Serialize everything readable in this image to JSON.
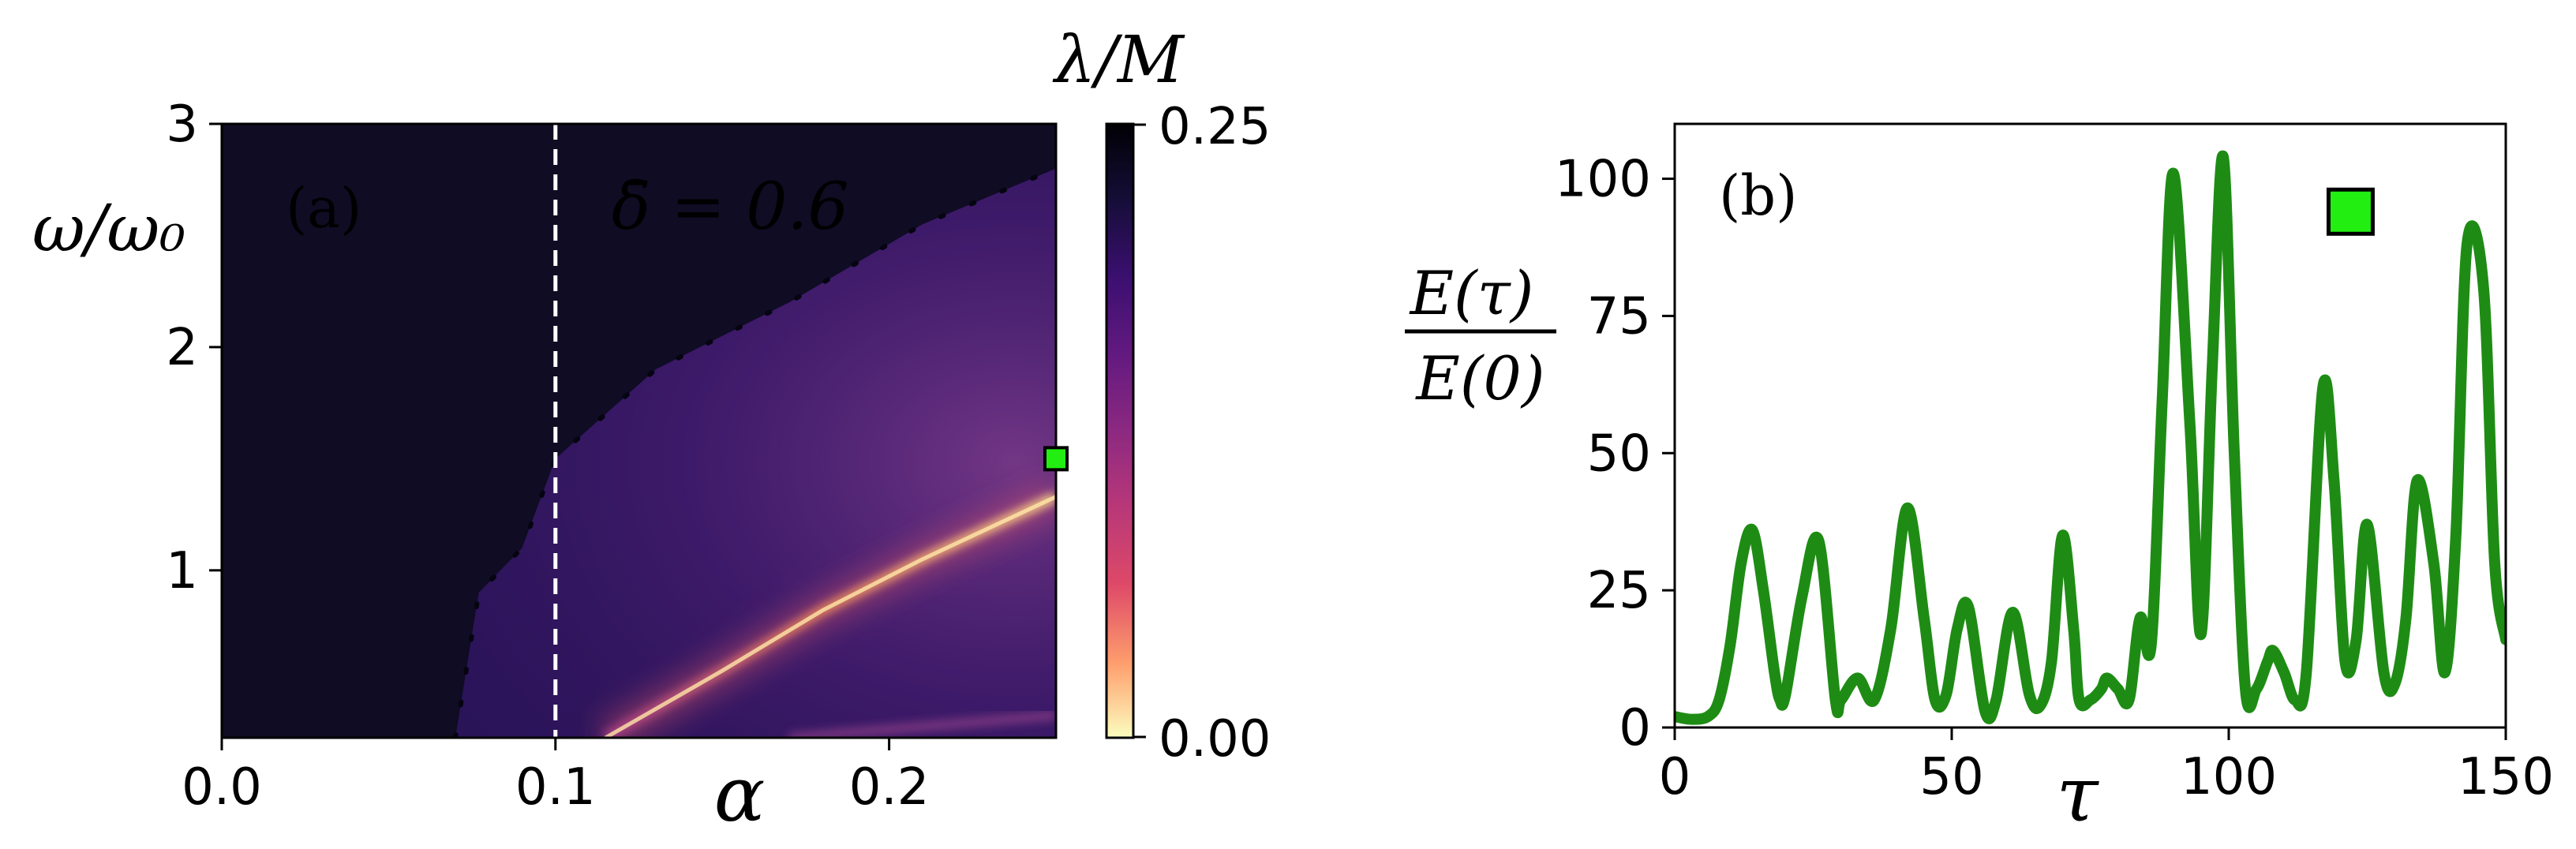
{
  "chart_data": [
    {
      "panel": "a",
      "type": "heatmap",
      "panel_label": "(a)",
      "annotation": "δ̄ = 0.6",
      "xlabel": "α",
      "ylabel": "ω/ω₀",
      "xlim": [
        0.0,
        0.25
      ],
      "ylim": [
        0.25,
        3.0
      ],
      "xticks": [
        0.0,
        0.1,
        0.2
      ],
      "xtick_labels": [
        "0.0",
        "0.1",
        "0.2"
      ],
      "yticks": [
        1,
        2,
        3
      ],
      "ytick_labels": [
        "1",
        "2",
        "3"
      ],
      "vline_x": 0.1,
      "marker": {
        "x": 0.25,
        "y": 1.5,
        "color": "#22ee11"
      },
      "colorbar": {
        "label": "λ/M",
        "min": 0.0,
        "max": 0.25,
        "tick_labels": [
          "0.25",
          "0.00"
        ],
        "colormap": "magma"
      },
      "features": {
        "dark_region_alpha_max": 0.07,
        "instability_boundary": [
          [
            0.07,
            0.25
          ],
          [
            0.077,
            0.9
          ],
          [
            0.09,
            1.1
          ],
          [
            0.1,
            1.5
          ],
          [
            0.13,
            1.9
          ],
          [
            0.17,
            2.2
          ],
          [
            0.21,
            2.55
          ],
          [
            0.25,
            2.8
          ]
        ],
        "bright_resonance": [
          [
            0.115,
            0.25
          ],
          [
            0.15,
            0.55
          ],
          [
            0.18,
            0.82
          ],
          [
            0.21,
            1.05
          ],
          [
            0.25,
            1.33
          ]
        ],
        "faint_resonance": [
          [
            0.17,
            0.25
          ],
          [
            0.25,
            0.35
          ]
        ]
      }
    },
    {
      "panel": "b",
      "type": "line",
      "panel_label": "(b)",
      "xlabel": "τ",
      "ylabel_numerator": "E(τ)",
      "ylabel_denominator": "E(0)",
      "xlim": [
        0,
        150
      ],
      "ylim": [
        0,
        110
      ],
      "xticks": [
        0,
        50,
        100,
        150
      ],
      "xtick_labels": [
        "0",
        "50",
        "100",
        "150"
      ],
      "yticks": [
        0,
        25,
        50,
        75,
        100
      ],
      "ytick_labels": [
        "0",
        "25",
        "50",
        "75",
        "100"
      ],
      "line_color": "#1e8c14",
      "marker": {
        "x": 122,
        "y": 94,
        "color": "#22ee11"
      },
      "series": [
        {
          "name": "E(τ)/E(0)",
          "x": [
            0,
            3,
            6,
            8,
            10,
            12,
            14,
            16,
            18,
            19,
            20,
            23,
            26,
            29,
            30,
            33,
            36,
            39,
            42,
            45,
            47,
            49,
            51,
            53,
            56,
            58,
            61,
            64,
            66,
            68,
            70,
            72,
            73,
            75,
            77,
            78,
            80,
            82,
            84,
            86,
            88,
            90,
            93,
            95,
            97,
            99,
            101,
            103,
            105,
            107,
            108,
            110,
            112,
            114,
            117,
            119,
            121,
            123,
            125,
            128,
            130,
            132,
            134,
            137,
            139,
            141,
            143,
            146,
            148,
            150
          ],
          "y": [
            2,
            1.5,
            2,
            5,
            15,
            30,
            36,
            25,
            10,
            5,
            6,
            24,
            34,
            5,
            5,
            9,
            5,
            18,
            40,
            20,
            5,
            6,
            18,
            22,
            3,
            5,
            21,
            6,
            4,
            12,
            35,
            18,
            5,
            5,
            7,
            9,
            7,
            5,
            20,
            15,
            60,
            101,
            55,
            17,
            65,
            104,
            50,
            7,
            7,
            12,
            14,
            10,
            5,
            10,
            62,
            45,
            12,
            16,
            37,
            10,
            8,
            20,
            45,
            30,
            10,
            35,
            88,
            80,
            30,
            16
          ]
        }
      ]
    }
  ]
}
